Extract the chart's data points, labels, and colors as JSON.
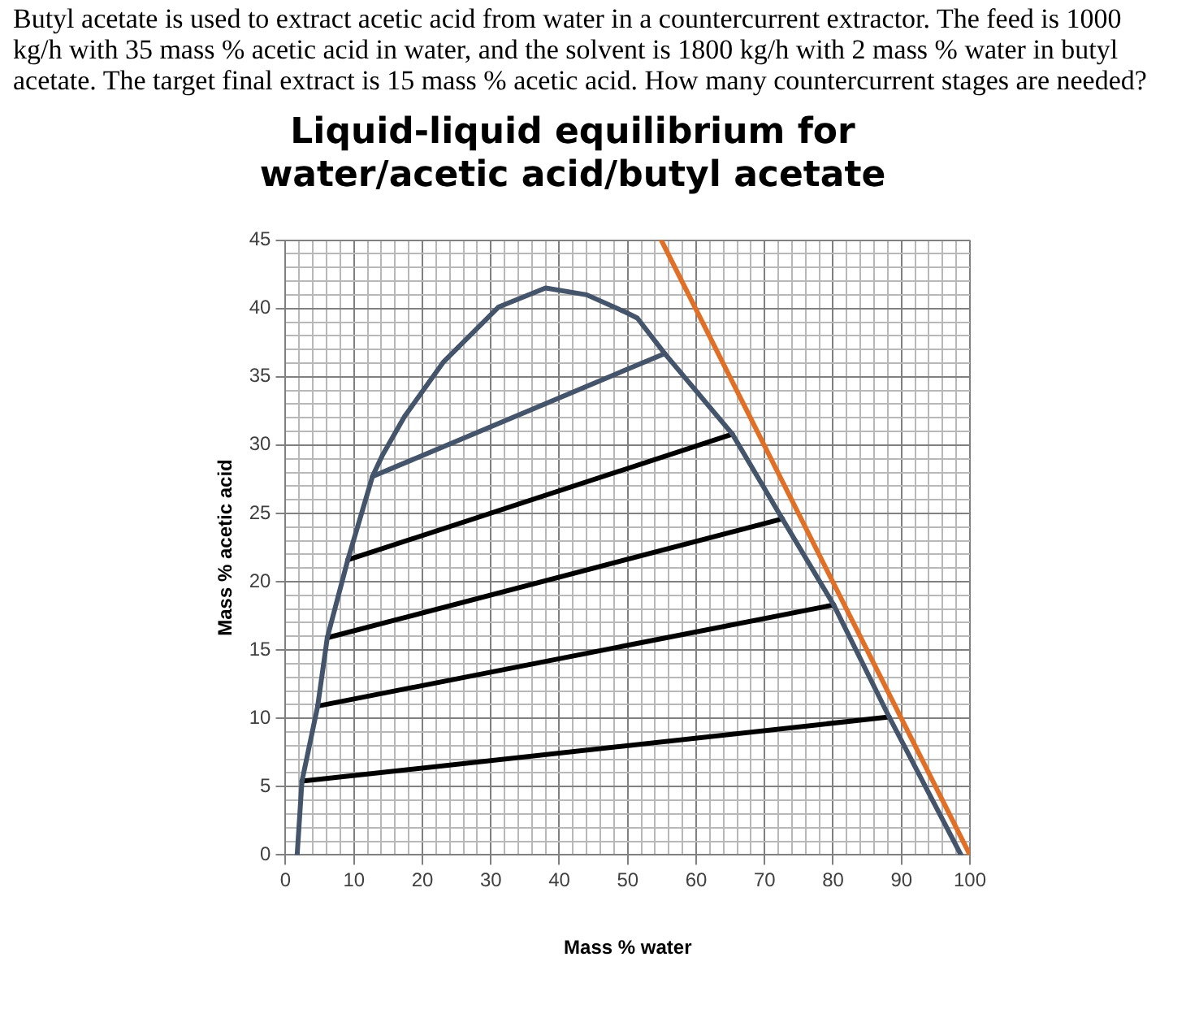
{
  "chart_data": {
    "type": "line",
    "title": "Liquid-liquid equilibrium for\nwater/acetic acid/butyl acetate",
    "xlabel": "Mass % water",
    "ylabel": "Mass % acetic acid",
    "annotations": [
      "Butyl acetate is used to extract acetic acid from water in a countercurrent extractor.  The feed is 1000 kg/h with 35 mass % acetic acid in water, and the solvent is 1800 kg/h with 2 mass % water in butyl acetate.  The target final extract is 15 mass % acetic acid.  How many countercurrent stages are needed?"
    ],
    "xlim": [
      0,
      100
    ],
    "ylim": [
      0,
      45
    ],
    "xticks": [
      0,
      {
        "value": 2,
        "label": null
      },
      {
        "value": 4,
        "label": null
      },
      {
        "value": 6,
        "label": null
      },
      {
        "value": 8,
        "label": null
      },
      10,
      {
        "value": 12,
        "label": null
      },
      {
        "value": 14,
        "label": null
      },
      {
        "value": 16,
        "label": null
      },
      {
        "value": 18,
        "label": null
      },
      20,
      {
        "value": 22,
        "label": null
      },
      {
        "value": 24,
        "label": null
      },
      {
        "value": 26,
        "label": null
      },
      {
        "value": 28,
        "label": null
      },
      30,
      {
        "value": 32,
        "label": null
      },
      {
        "value": 34,
        "label": null
      },
      {
        "value": 36,
        "label": null
      },
      {
        "value": 38,
        "label": null
      },
      40,
      {
        "value": 42,
        "label": null
      },
      {
        "value": 44,
        "label": null
      },
      {
        "value": 46,
        "label": null
      },
      {
        "value": 48,
        "label": null
      },
      50,
      {
        "value": 52,
        "label": null
      },
      {
        "value": 54,
        "label": null
      },
      {
        "value": 56,
        "label": null
      },
      {
        "value": 58,
        "label": null
      },
      60,
      {
        "value": 62,
        "label": null
      },
      {
        "value": 64,
        "label": null
      },
      {
        "value": 66,
        "label": null
      },
      {
        "value": 68,
        "label": null
      },
      70,
      {
        "value": 72,
        "label": null
      },
      {
        "value": 74,
        "label": null
      },
      {
        "value": 76,
        "label": null
      },
      {
        "value": 78,
        "label": null
      },
      80,
      {
        "value": 82,
        "label": null
      },
      {
        "value": 84,
        "label": null
      },
      {
        "value": 86,
        "label": null
      },
      {
        "value": 88,
        "label": null
      },
      90,
      {
        "value": 92,
        "label": null
      },
      {
        "value": 94,
        "label": null
      },
      {
        "value": 96,
        "label": null
      },
      {
        "value": 98,
        "label": null
      },
      100
    ],
    "yticks": [
      0,
      {
        "value": 1,
        "label": null
      },
      {
        "value": 2,
        "label": null
      },
      {
        "value": 3,
        "label": null
      },
      {
        "value": 4,
        "label": null
      },
      5,
      {
        "value": 6,
        "label": null
      },
      {
        "value": 7,
        "label": null
      },
      {
        "value": 8,
        "label": null
      },
      {
        "value": 9,
        "label": null
      },
      10,
      {
        "value": 11,
        "label": null
      },
      {
        "value": 12,
        "label": null
      },
      {
        "value": 13,
        "label": null
      },
      {
        "value": 14,
        "label": null
      },
      15,
      {
        "value": 16,
        "label": null
      },
      {
        "value": 17,
        "label": null
      },
      {
        "value": 18,
        "label": null
      },
      {
        "value": 19,
        "label": null
      },
      20,
      {
        "value": 21,
        "label": null
      },
      {
        "value": 22,
        "label": null
      },
      {
        "value": 23,
        "label": null
      },
      {
        "value": 24,
        "label": null
      },
      25,
      {
        "value": 26,
        "label": null
      },
      {
        "value": 27,
        "label": null
      },
      {
        "value": 28,
        "label": null
      },
      {
        "value": 29,
        "label": null
      },
      30,
      {
        "value": 31,
        "label": null
      },
      {
        "value": 32,
        "label": null
      },
      {
        "value": 33,
        "label": null
      },
      {
        "value": 34,
        "label": null
      },
      35,
      {
        "value": 36,
        "label": null
      },
      {
        "value": 37,
        "label": null
      },
      {
        "value": 38,
        "label": null
      },
      {
        "value": 39,
        "label": null
      },
      40,
      {
        "value": 41,
        "label": null
      },
      {
        "value": 42,
        "label": null
      },
      {
        "value": 43,
        "label": null
      },
      {
        "value": 44,
        "label": null
      },
      45
    ],
    "grid": true,
    "legend": false,
    "marker": "none",
    "line_style": "solid",
    "series": [
      {
        "color": "#44546a",
        "x": [
          1.7,
          2.4,
          4.7,
          6.1,
          9.1,
          12.7,
          14.2,
          17.4,
          23.1,
          31.1,
          38.0,
          44.0,
          49.8,
          51.4,
          55.4,
          65.3,
          72.6,
          80.1,
          88.2,
          98.7
        ],
        "values": [
          0,
          5.4,
          10.9,
          15.9,
          21.6,
          27.7,
          29.3,
          32.1,
          36.1,
          40.1,
          41.5,
          41.0,
          39.7,
          39.3,
          36.7,
          30.8,
          24.6,
          18.3,
          10.1,
          0
        ]
      },
      {
        "color": "#44546a",
        "x": [
          12.7,
          55.4
        ],
        "values": [
          27.7,
          36.7
        ]
      },
      {
        "color": "#000000",
        "x": [
          9.1,
          65.3
        ],
        "values": [
          21.6,
          30.8
        ]
      },
      {
        "color": "#000000",
        "x": [
          6.1,
          72.6
        ],
        "values": [
          15.9,
          24.6
        ]
      },
      {
        "color": "#000000",
        "x": [
          4.7,
          80.1
        ],
        "values": [
          10.9,
          18.3
        ]
      },
      {
        "color": "#000000",
        "x": [
          2.4,
          88.2
        ],
        "values": [
          5.4,
          10.1
        ]
      },
      {
        "color": "#e07027",
        "x": [
          54.9,
          100
        ],
        "values": [
          45,
          0
        ]
      }
    ]
  }
}
